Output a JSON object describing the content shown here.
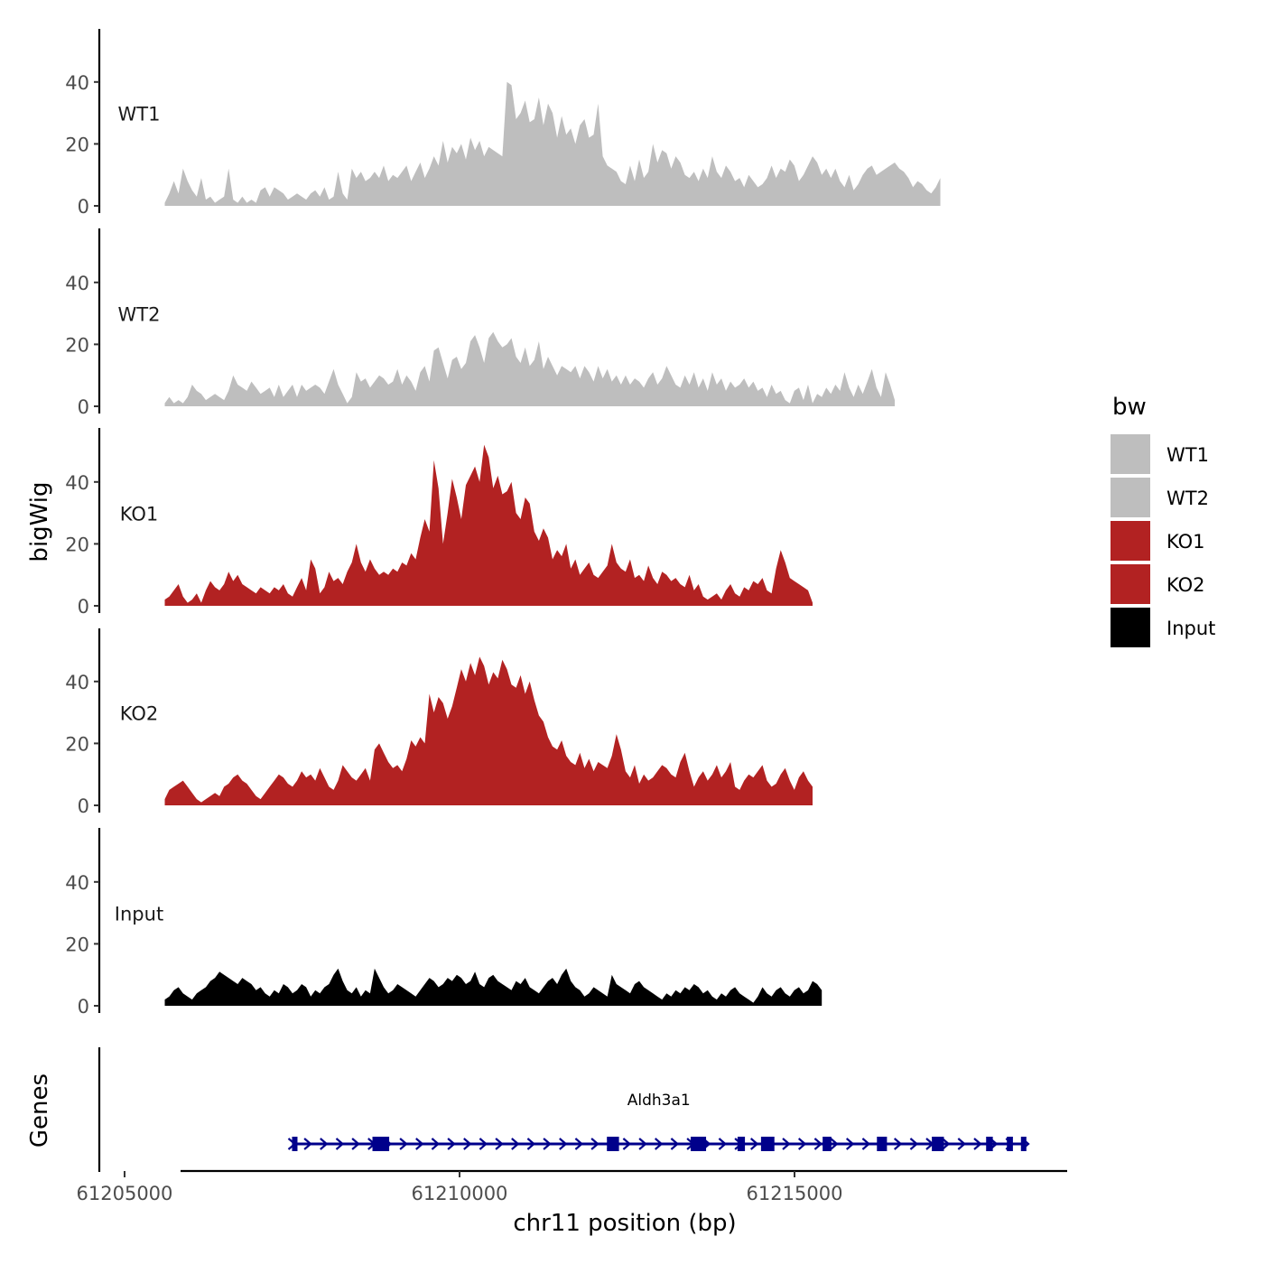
{
  "chart_data": {
    "type": "area",
    "ylabel": "bigWig",
    "gene_panel_label": "Genes",
    "xlabel": "chr11 position (bp)",
    "x_ticks": [
      61205000,
      61210000,
      61215000
    ],
    "x_tick_labels": [
      "61205000",
      "61210000",
      "61215000"
    ],
    "xlim": [
      61204650,
      61219070
    ],
    "ylim": [
      0,
      57
    ],
    "y_ticks": [
      0,
      20,
      40
    ],
    "y_tick_labels": [
      "0",
      "20",
      "40"
    ],
    "legend": {
      "title": "bw",
      "position": "right",
      "entries": [
        {
          "label": "WT1",
          "color": "#bebebe"
        },
        {
          "label": "WT2",
          "color": "#bebebe"
        },
        {
          "label": "KO1",
          "color": "#b22222"
        },
        {
          "label": "KO2",
          "color": "#b22222"
        },
        {
          "label": "Input",
          "color": "#000000"
        }
      ]
    },
    "x_start": 61205600,
    "x_step": 68.1,
    "series": [
      {
        "name": "WT1",
        "color": "#bebebe",
        "values": [
          1,
          4,
          8,
          4,
          12,
          8,
          5,
          3,
          9,
          2,
          3,
          1,
          2,
          3,
          12,
          2,
          1,
          3,
          1,
          2,
          1,
          5,
          6,
          3,
          6,
          5,
          4,
          2,
          3,
          4,
          3,
          2,
          4,
          5,
          3,
          6,
          2,
          3,
          11,
          4,
          2,
          12,
          9,
          11,
          8,
          9,
          11,
          9,
          13,
          8,
          10,
          9,
          11,
          13,
          8,
          11,
          14,
          9,
          12,
          16,
          13,
          21,
          14,
          19,
          17,
          20,
          15,
          22,
          18,
          21,
          16,
          19,
          18,
          17,
          16,
          40,
          39,
          28,
          30,
          34,
          27,
          28,
          35,
          26,
          33,
          30,
          22,
          29,
          23,
          25,
          20,
          26,
          28,
          22,
          23,
          33,
          16,
          13,
          12,
          11,
          8,
          7,
          13,
          8,
          15,
          9,
          11,
          20,
          14,
          18,
          17,
          12,
          16,
          14,
          10,
          9,
          11,
          8,
          12,
          9,
          16,
          11,
          9,
          13,
          11,
          8,
          9,
          6,
          10,
          8,
          6,
          7,
          9,
          13,
          9,
          12,
          11,
          15,
          13,
          8,
          10,
          13,
          16,
          14,
          10,
          12,
          9,
          12,
          8,
          6,
          10,
          5,
          7,
          10,
          12,
          13,
          10,
          11,
          12,
          13,
          14,
          12,
          11,
          9,
          6,
          8,
          7,
          5,
          4,
          6,
          9
        ]
      },
      {
        "name": "WT2",
        "color": "#bebebe",
        "values": [
          1,
          3,
          1,
          2,
          1,
          3,
          7,
          5,
          4,
          2,
          3,
          4,
          3,
          2,
          5,
          10,
          7,
          6,
          5,
          8,
          6,
          4,
          5,
          6,
          3,
          7,
          3,
          5,
          7,
          3,
          7,
          5,
          6,
          7,
          6,
          4,
          8,
          12,
          7,
          4,
          1,
          3,
          11,
          8,
          9,
          6,
          8,
          10,
          9,
          7,
          8,
          12,
          7,
          10,
          8,
          5,
          11,
          13,
          8,
          18,
          19,
          14,
          9,
          15,
          16,
          12,
          14,
          21,
          23,
          19,
          14,
          22,
          24,
          21,
          19,
          20,
          22,
          16,
          14,
          19,
          13,
          15,
          21,
          12,
          16,
          13,
          10,
          13,
          12,
          11,
          13,
          9,
          13,
          11,
          8,
          13,
          9,
          12,
          8,
          10,
          7,
          10,
          7,
          9,
          8,
          6,
          9,
          11,
          7,
          9,
          13,
          10,
          7,
          6,
          10,
          7,
          11,
          6,
          9,
          5,
          11,
          7,
          9,
          5,
          8,
          6,
          7,
          9,
          6,
          8,
          5,
          6,
          3,
          7,
          4,
          5,
          2,
          1,
          5,
          6,
          2,
          7,
          1,
          4,
          3,
          6,
          4,
          7,
          5,
          11,
          6,
          3,
          7,
          4,
          8,
          12,
          6,
          3,
          11,
          7,
          2
        ]
      },
      {
        "name": "KO1",
        "color": "#b22222",
        "values": [
          2,
          3,
          5,
          7,
          3,
          1,
          2,
          4,
          1,
          5,
          8,
          6,
          5,
          7,
          11,
          8,
          10,
          7,
          6,
          5,
          4,
          6,
          5,
          4,
          6,
          5,
          7,
          4,
          3,
          6,
          9,
          5,
          15,
          12,
          4,
          6,
          11,
          8,
          9,
          7,
          11,
          14,
          20,
          14,
          11,
          15,
          12,
          10,
          11,
          10,
          12,
          11,
          14,
          13,
          17,
          15,
          22,
          28,
          24,
          47,
          38,
          20,
          30,
          41,
          35,
          28,
          39,
          42,
          45,
          40,
          52,
          48,
          38,
          42,
          36,
          37,
          40,
          30,
          28,
          35,
          33,
          24,
          21,
          25,
          22,
          15,
          18,
          16,
          20,
          12,
          15,
          10,
          12,
          14,
          10,
          9,
          11,
          13,
          20,
          14,
          12,
          11,
          15,
          9,
          10,
          8,
          13,
          9,
          7,
          11,
          10,
          8,
          9,
          7,
          6,
          10,
          5,
          7,
          3,
          2,
          3,
          4,
          2,
          5,
          7,
          4,
          3,
          6,
          5,
          8,
          7,
          9,
          5,
          4,
          12,
          18,
          14,
          9,
          8,
          7,
          6,
          5,
          1
        ]
      },
      {
        "name": "KO2",
        "color": "#b22222",
        "values": [
          2,
          5,
          6,
          7,
          8,
          6,
          4,
          2,
          1,
          2,
          3,
          4,
          3,
          6,
          7,
          9,
          10,
          8,
          7,
          5,
          3,
          2,
          4,
          6,
          8,
          10,
          9,
          7,
          6,
          8,
          11,
          9,
          10,
          8,
          12,
          9,
          6,
          5,
          8,
          13,
          11,
          9,
          8,
          10,
          12,
          8,
          18,
          20,
          17,
          14,
          12,
          13,
          11,
          15,
          21,
          19,
          22,
          20,
          36,
          30,
          35,
          33,
          28,
          32,
          38,
          44,
          40,
          46,
          42,
          48,
          45,
          39,
          43,
          41,
          47,
          44,
          39,
          38,
          42,
          36,
          40,
          34,
          29,
          27,
          22,
          19,
          18,
          21,
          16,
          14,
          13,
          17,
          12,
          15,
          11,
          14,
          13,
          12,
          16,
          23,
          18,
          11,
          9,
          13,
          7,
          10,
          8,
          9,
          11,
          13,
          12,
          10,
          9,
          14,
          17,
          11,
          6,
          9,
          11,
          8,
          10,
          13,
          9,
          11,
          14,
          6,
          5,
          8,
          10,
          9,
          11,
          13,
          8,
          6,
          7,
          10,
          12,
          8,
          5,
          9,
          11,
          8,
          6
        ]
      },
      {
        "name": "Input",
        "color": "#000000",
        "values": [
          2,
          3,
          5,
          6,
          4,
          3,
          2,
          4,
          5,
          6,
          8,
          9,
          11,
          10,
          9,
          8,
          7,
          9,
          8,
          7,
          5,
          6,
          4,
          3,
          5,
          4,
          7,
          6,
          4,
          5,
          7,
          6,
          3,
          5,
          4,
          6,
          7,
          10,
          12,
          8,
          5,
          4,
          6,
          3,
          5,
          4,
          12,
          9,
          6,
          4,
          5,
          7,
          6,
          5,
          4,
          3,
          5,
          7,
          9,
          8,
          6,
          7,
          9,
          8,
          10,
          9,
          7,
          8,
          11,
          7,
          6,
          9,
          10,
          8,
          7,
          6,
          5,
          8,
          7,
          9,
          6,
          5,
          4,
          6,
          8,
          9,
          7,
          10,
          12,
          8,
          6,
          5,
          3,
          4,
          6,
          5,
          4,
          3,
          10,
          7,
          6,
          5,
          4,
          7,
          8,
          6,
          5,
          4,
          3,
          2,
          4,
          3,
          5,
          4,
          6,
          5,
          7,
          6,
          4,
          5,
          3,
          2,
          4,
          3,
          5,
          6,
          4,
          3,
          2,
          1,
          3,
          6,
          4,
          3,
          5,
          6,
          4,
          3,
          5,
          6,
          4,
          5,
          8,
          7,
          5
        ]
      }
    ],
    "gene": {
      "name": "Aldh3a1",
      "strand": "+",
      "start": 61207500,
      "end": 61218450,
      "color": "#00008b",
      "exons": [
        [
          61207500,
          61207580
        ],
        [
          61208700,
          61208950
        ],
        [
          61212200,
          61212380
        ],
        [
          61213450,
          61213680
        ],
        [
          61214150,
          61214260
        ],
        [
          61214500,
          61214700
        ],
        [
          61215420,
          61215550
        ],
        [
          61216230,
          61216380
        ],
        [
          61217050,
          61217230
        ],
        [
          61217860,
          61217960
        ],
        [
          61218170,
          61218260
        ],
        [
          61218380,
          61218450
        ]
      ]
    }
  }
}
